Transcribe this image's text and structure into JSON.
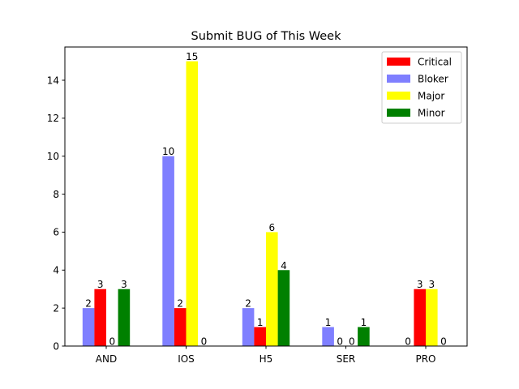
{
  "chart_data": {
    "type": "bar",
    "title": "Submit BUG of This Week",
    "xlabel": "",
    "ylabel": "",
    "categories": [
      "AND",
      "IOS",
      "H5",
      "SER",
      "PRO"
    ],
    "ylim": [
      0,
      15.75
    ],
    "yticks": [
      0,
      2,
      4,
      6,
      8,
      10,
      12,
      14
    ],
    "grid": false,
    "legend_position": "top-right",
    "bar_order": [
      "Bloker",
      "Critical",
      "Major",
      "Minor"
    ],
    "legend_order": [
      "Critical",
      "Bloker",
      "Major",
      "Minor"
    ],
    "series": [
      {
        "name": "Critical",
        "color": "#ff0000",
        "values": [
          3,
          2,
          1,
          0,
          3
        ]
      },
      {
        "name": "Bloker",
        "color": "#7f7fff",
        "values": [
          2,
          10,
          2,
          1,
          0
        ]
      },
      {
        "name": "Major",
        "color": "#ffff00",
        "values": [
          0,
          15,
          6,
          0,
          3
        ]
      },
      {
        "name": "Minor",
        "color": "#008000",
        "values": [
          3,
          0,
          4,
          1,
          0
        ]
      }
    ]
  }
}
